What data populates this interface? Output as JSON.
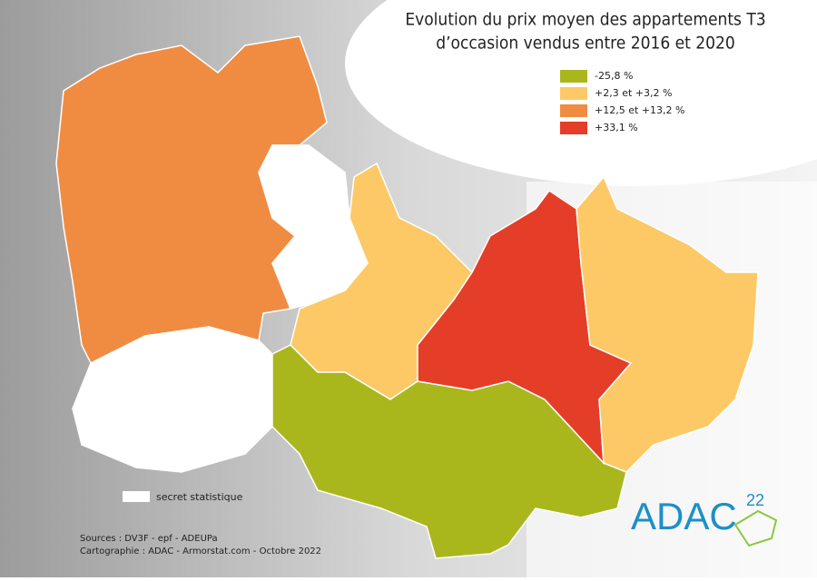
{
  "title": [
    "Evolution du prix moyen des appartements T3",
    "d’occasion vendus entre 2016 et 2020"
  ],
  "legend": [
    {
      "label": "-25,8 %",
      "color": "#a9b71d"
    },
    {
      "label": "+2,3 et +3,2 %",
      "color": "#fdc967"
    },
    {
      "label": "+12,5 et +13,2 %",
      "color": "#f08c42"
    },
    {
      "label": "+33,1 %",
      "color": "#e43e28"
    }
  ],
  "secret_label": "secret statistique",
  "sources": "Sources : DV3F - epf - ADEUPa",
  "cartographie": "Cartographie : ADAC - Armorstat.com - Octobre 2022",
  "logo": {
    "text": "ADAC",
    "superscript": "22"
  }
}
